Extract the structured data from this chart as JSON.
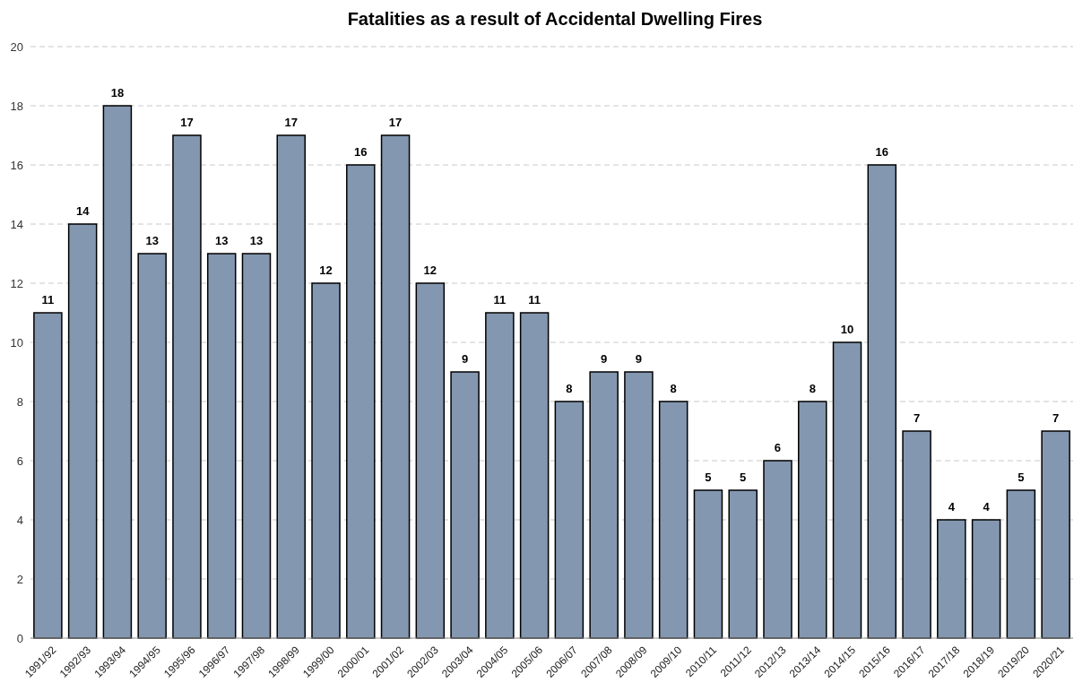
{
  "chart_data": {
    "type": "bar",
    "title": "Fatalities as a result of Accidental Dwelling Fires",
    "categories": [
      "1991/92",
      "1992/93",
      "1993/94",
      "1994/95",
      "1995/96",
      "1996/97",
      "1997/98",
      "1998/99",
      "1999/00",
      "2000/01",
      "2001/02",
      "2002/03",
      "2003/04",
      "2004/05",
      "2005/06",
      "2006/07",
      "2007/08",
      "2008/09",
      "2009/10",
      "2010/11",
      "2011/12",
      "2012/13",
      "2013/14",
      "2014/15",
      "2015/16",
      "2016/17",
      "2017/18",
      "2018/19",
      "2019/20",
      "2020/21"
    ],
    "values": [
      11,
      14,
      18,
      13,
      17,
      13,
      13,
      17,
      12,
      16,
      17,
      12,
      9,
      11,
      11,
      8,
      9,
      9,
      8,
      5,
      5,
      6,
      8,
      10,
      16,
      7,
      4,
      4,
      5,
      7
    ],
    "color": "#8497b0",
    "ylim": [
      0,
      20
    ],
    "yticks": [
      0,
      2,
      4,
      6,
      8,
      10,
      12,
      14,
      16,
      18,
      20
    ],
    "grid": "y",
    "data_labels": true
  }
}
